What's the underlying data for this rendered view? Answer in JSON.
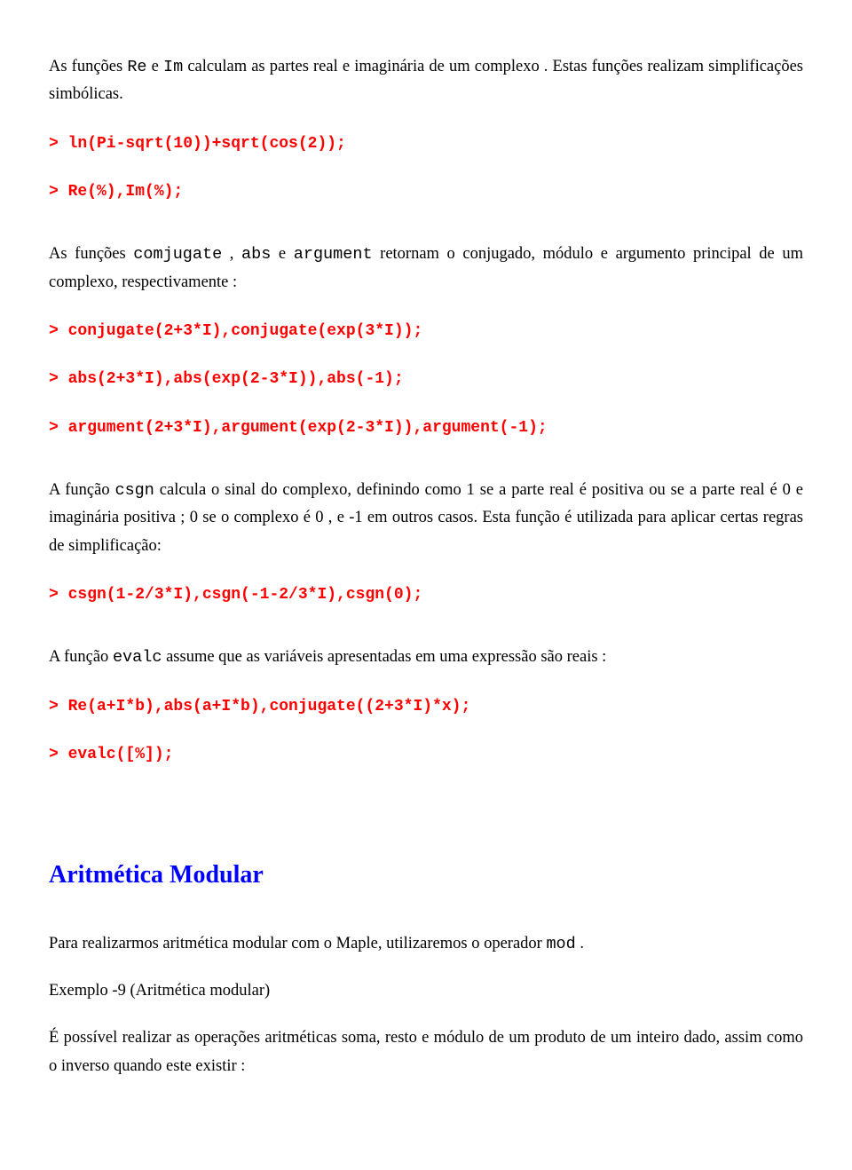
{
  "p1": {
    "pre": "As funções ",
    "fn1": "Re",
    "mid1": " e ",
    "fn2": "Im",
    "post": " calculam as partes real e imaginária de um complexo . Estas funções realizam simplificações simbólicas."
  },
  "code1": "> ln(Pi-sqrt(10))+sqrt(cos(2));",
  "code2": "> Re(%),Im(%);",
  "p2": {
    "pre": "As funções ",
    "fn1": "comjugate",
    "mid1": " , ",
    "fn2": "abs",
    "mid2": " e  ",
    "fn3": "argument",
    "post": "  retornam o conjugado, módulo e argumento principal de um complexo, respectivamente :"
  },
  "code3": "> conjugate(2+3*I),conjugate(exp(3*I));",
  "code4": "> abs(2+3*I),abs(exp(2-3*I)),abs(-1);",
  "code5": "> argument(2+3*I),argument(exp(2-3*I)),argument(-1);",
  "p3": {
    "pre": "A função ",
    "fn1": "csgn",
    "post": " calcula o sinal do complexo, definindo como 1 se a parte real  é positiva ou se a parte real é 0 e imaginária positiva ; 0 se o complexo é 0 , e  -1  em outros casos. Esta função é utilizada para aplicar certas regras de simplificação:"
  },
  "code6": "> csgn(1-2/3*I),csgn(-1-2/3*I),csgn(0);",
  "p4": {
    "pre": "A função ",
    "fn1": "evalc",
    "post": " assume que as variáveis apresentadas em uma expressão são reais :"
  },
  "code7": "> Re(a+I*b),abs(a+I*b),conjugate((2+3*I)*x);",
  "code8": "> evalc([%]);",
  "section": "Aritmética Modular",
  "p5": {
    "pre": "Para realizarmos aritmética modular com o Maple, utilizaremos o operador ",
    "fn1": "mod",
    "post": " ."
  },
  "p6": "Exemplo -9 (Aritmética modular)",
  "p7": "É possível realizar as operações aritméticas soma, resto e módulo de um produto de um inteiro dado, assim como o inverso quando este existir :"
}
